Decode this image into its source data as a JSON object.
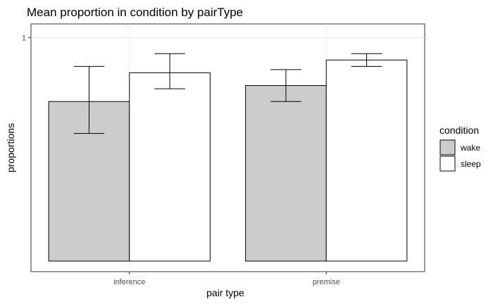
{
  "chart_data": {
    "type": "bar",
    "title": "Mean proportion in condition by pairType",
    "xlabel": "pair type",
    "ylabel": "proportions",
    "categories": [
      "inference",
      "premise"
    ],
    "y_ticks": [
      "1"
    ],
    "ylim": [
      0.3,
      1.01
    ],
    "grid": true,
    "legend": {
      "title": "condition",
      "position": "right"
    },
    "series": [
      {
        "name": "wake",
        "color": "#cccccc",
        "values": [
          0.8,
          0.85
        ],
        "error_low": [
          0.7,
          0.8
        ],
        "error_high": [
          0.91,
          0.9
        ]
      },
      {
        "name": "sleep",
        "color": "#ffffff",
        "values": [
          0.89,
          0.93
        ],
        "error_low": [
          0.84,
          0.91
        ],
        "error_high": [
          0.95,
          0.95
        ]
      }
    ]
  }
}
